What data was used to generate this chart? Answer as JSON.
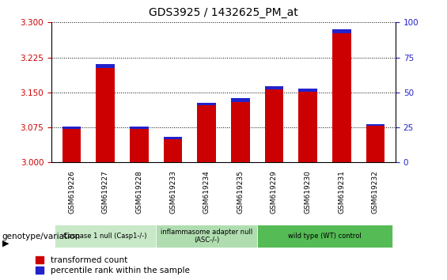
{
  "title": "GDS3925 / 1432625_PM_at",
  "samples": [
    "GSM619226",
    "GSM619227",
    "GSM619228",
    "GSM619233",
    "GSM619234",
    "GSM619235",
    "GSM619229",
    "GSM619230",
    "GSM619231",
    "GSM619232"
  ],
  "transformed_count": [
    3.076,
    3.21,
    3.076,
    3.055,
    3.128,
    3.137,
    3.163,
    3.158,
    3.285,
    3.082
  ],
  "blue_height": [
    0.005,
    0.007,
    0.005,
    0.005,
    0.005,
    0.007,
    0.007,
    0.007,
    0.009,
    0.004
  ],
  "ylim_left": [
    3.0,
    3.3
  ],
  "ylim_right": [
    0,
    100
  ],
  "yticks_left": [
    3.0,
    3.075,
    3.15,
    3.225,
    3.3
  ],
  "yticks_right": [
    0,
    25,
    50,
    75,
    100
  ],
  "bar_color_red": "#cc0000",
  "bar_color_blue": "#2222cc",
  "groups": [
    {
      "label": "Caspase 1 null (Casp1-/-)",
      "indices": [
        0,
        1,
        2
      ],
      "color": "#c8e8c8"
    },
    {
      "label": "inflammasome adapter null\n(ASC-/-)",
      "indices": [
        3,
        4,
        5
      ],
      "color": "#b0ddb0"
    },
    {
      "label": "wild type (WT) control",
      "indices": [
        6,
        7,
        8,
        9
      ],
      "color": "#55bb55"
    }
  ],
  "bar_width": 0.55,
  "background_color": "#ffffff",
  "left_tick_color": "#cc0000",
  "right_tick_color": "#2222cc",
  "title_fontsize": 10,
  "tick_labelsize": 7.5,
  "sample_labelsize": 6.5
}
